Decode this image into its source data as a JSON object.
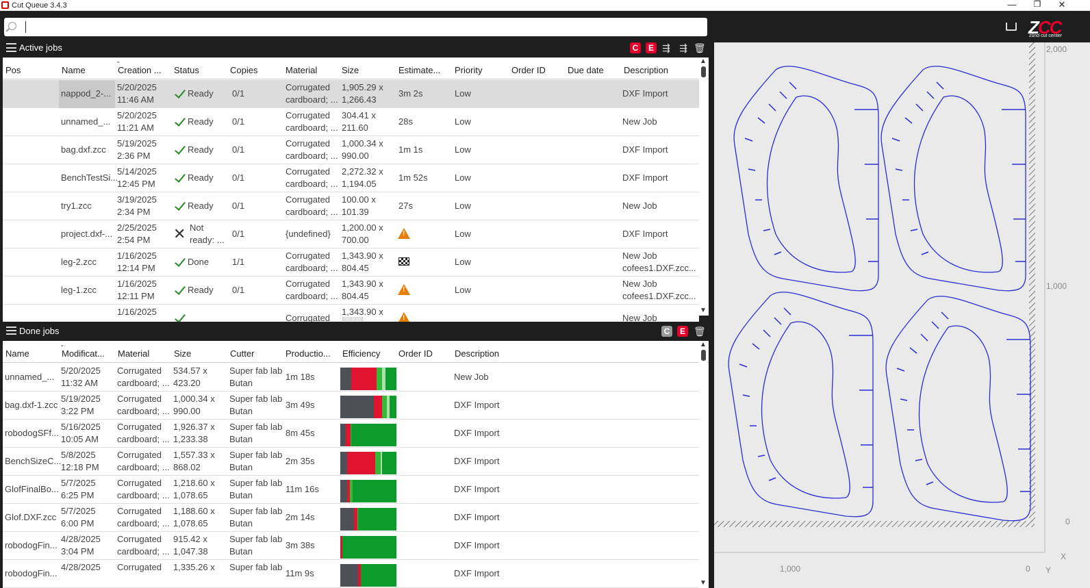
{
  "window": {
    "title": "Cut Queue 3.4.3",
    "minimize": "—",
    "restore": "❐",
    "close": "✕"
  },
  "search": {
    "value": "",
    "placeholder": ""
  },
  "active_jobs": {
    "title": "Active jobs",
    "toolbar_icons": [
      "c-icon",
      "e-icon",
      "send-icon",
      "send-all-icon",
      "trash-icon"
    ],
    "columns": [
      "Pos",
      "Name",
      "Creation ...",
      "Status",
      "Copies",
      "Material",
      "Size",
      "Estimate...",
      "Priority",
      "Order ID",
      "Due date",
      "Description"
    ],
    "rows": [
      {
        "name": "nappod_2-...",
        "date": "5/20/2025",
        "time": "11:46 AM",
        "status": "Ready",
        "status_icon": "check",
        "copies": "0/1",
        "mat1": "Corrugated",
        "mat2": "cardboard; ...",
        "size1": "1,905.29 x",
        "size2": "1,266.43",
        "estimate": "3m 2s",
        "priority": "Low",
        "desc1": "DXF Import",
        "desc2": "",
        "selected": true
      },
      {
        "name": "unnamed_...",
        "date": "5/20/2025",
        "time": "11:21 AM",
        "status": "Ready",
        "status_icon": "check",
        "copies": "0/1",
        "mat1": "Corrugated",
        "mat2": "cardboard; ...",
        "size1": "304.41 x",
        "size2": "211.60",
        "estimate": "28s",
        "priority": "Low",
        "desc1": "New Job",
        "desc2": ""
      },
      {
        "name": "bag.dxf.zcc",
        "date": "5/19/2025",
        "time": "2:36 PM",
        "status": "Ready",
        "status_icon": "check",
        "copies": "0/1",
        "mat1": "Corrugated",
        "mat2": "cardboard; ...",
        "size1": "1,000.34 x",
        "size2": "990.00",
        "estimate": "1m 1s",
        "priority": "Low",
        "desc1": "DXF Import",
        "desc2": ""
      },
      {
        "name": "BenchTestSi...",
        "date": "5/14/2025",
        "time": "12:45 PM",
        "status": "Ready",
        "status_icon": "check",
        "copies": "0/1",
        "mat1": "Corrugated",
        "mat2": "cardboard; ...",
        "size1": "2,272.32 x",
        "size2": "1,194.05",
        "estimate": "1m 52s",
        "priority": "Low",
        "desc1": "DXF Import",
        "desc2": ""
      },
      {
        "name": "try1.zcc",
        "date": "3/19/2025",
        "time": "2:34 PM",
        "status": "Ready",
        "status_icon": "check",
        "copies": "0/1",
        "mat1": "Corrugated",
        "mat2": "cardboard; ...",
        "size1": "100.00 x",
        "size2": "101.39",
        "estimate": "27s",
        "priority": "Low",
        "desc1": "New Job",
        "desc2": ""
      },
      {
        "name": "project.dxf-...",
        "date": "2/25/2025",
        "time": "2:54 PM",
        "status": "Not",
        "status2": "ready: ...",
        "status_icon": "x",
        "copies": "0/1",
        "mat1": "{undefined}",
        "mat2": "",
        "size1": "1,200.00 x",
        "size2": "700.00",
        "estimate": "",
        "estimate_icon": "warning",
        "priority": "Low",
        "desc1": "DXF Import",
        "desc2": ""
      },
      {
        "name": "leg-2.zcc",
        "date": "1/16/2025",
        "time": "12:14 PM",
        "status": "Done",
        "status_icon": "check",
        "copies": "1/1",
        "mat1": "Corrugated",
        "mat2": "cardboard; ...",
        "size1": "1,343.90 x",
        "size2": "804.45",
        "estimate": "",
        "estimate_icon": "flag",
        "priority": "Low",
        "desc1": "New Job",
        "desc2": "cofees1.DXF.zcc..."
      },
      {
        "name": "leg-1.zcc",
        "date": "1/16/2025",
        "time": "12:11 PM",
        "status": "Ready",
        "status_icon": "check",
        "copies": "0/1",
        "mat1": "Corrugated",
        "mat2": "cardboard; ...",
        "size1": "1,343.90 x",
        "size2": "804.45",
        "estimate": "",
        "estimate_icon": "warning",
        "priority": "Low",
        "desc1": "New Job",
        "desc2": "cofees1.DXF.zcc..."
      },
      {
        "name": "",
        "date": "1/16/2025",
        "time": "",
        "status": "",
        "status_icon": "check",
        "copies": "",
        "mat1": "Corrugated",
        "mat2": "",
        "size1": "1,343.90 x",
        "size2": "",
        "estimate": "",
        "estimate_icon": "warning",
        "priority": "",
        "desc1": "New Job",
        "desc2": ""
      }
    ]
  },
  "done_jobs": {
    "title": "Done jobs",
    "toolbar_icons": [
      "c-icon",
      "e-icon",
      "trash-icon"
    ],
    "columns": [
      "Name",
      "Modificat...",
      "Material",
      "Size",
      "Cutter",
      "Productio...",
      "Efficiency",
      "Order ID",
      "Description"
    ],
    "rows": [
      {
        "name": "unnamed_...",
        "date": "5/20/2025",
        "time": "11:32 AM",
        "mat1": "Corrugated",
        "mat2": "cardboard; ...",
        "size1": "534.57 x",
        "size2": "423.20",
        "cutter1": "Super fab lab",
        "cutter2": "Butan",
        "production": "1m 18s",
        "desc": "New Job",
        "eff": [
          0.2,
          0.45,
          0.1,
          0.05,
          0.2
        ]
      },
      {
        "name": "bag.dxf-1.zcc",
        "date": "5/19/2025",
        "time": "3:22 PM",
        "mat1": "Corrugated",
        "mat2": "cardboard; ...",
        "size1": "1,000.34 x",
        "size2": "990.00",
        "cutter1": "Super fab lab",
        "cutter2": "Butan",
        "production": "3m 49s",
        "desc": "DXF Import",
        "eff": [
          0.6,
          0.15,
          0.08,
          0.05,
          0.12
        ]
      },
      {
        "name": "robodogSFf...",
        "date": "5/16/2025",
        "time": "10:05 AM",
        "mat1": "Corrugated",
        "mat2": "cardboard; ...",
        "size1": "1,926.37 x",
        "size2": "1,233.38",
        "cutter1": "Super fab lab",
        "cutter2": "Butan",
        "production": "8m 45s",
        "desc": "DXF Import",
        "eff": [
          0.1,
          0.08,
          0.02,
          0.0,
          0.8
        ]
      },
      {
        "name": "BenchSizeC...",
        "date": "5/8/2025",
        "time": "12:18 PM",
        "mat1": "Corrugated",
        "mat2": "cardboard; ...",
        "size1": "1,557.33 x",
        "size2": "868.02",
        "cutter1": "Super fab lab",
        "cutter2": "Butan",
        "production": "2m 35s",
        "desc": "DXF Import",
        "eff": [
          0.12,
          0.5,
          0.1,
          0.03,
          0.25
        ]
      },
      {
        "name": "GlofFinalBo...",
        "date": "5/7/2025",
        "time": "6:25 PM",
        "mat1": "Corrugated",
        "mat2": "cardboard; ...",
        "size1": "1,218.60 x",
        "size2": "1,078.65",
        "cutter1": "Super fab lab",
        "cutter2": "Butan",
        "production": "11m 16s",
        "desc": "DXF Import",
        "eff": [
          0.12,
          0.05,
          0.05,
          0.0,
          0.78
        ]
      },
      {
        "name": "Glof.DXF.zcc",
        "date": "5/7/2025",
        "time": "6:00 PM",
        "mat1": "Corrugated",
        "mat2": "cardboard; ...",
        "size1": "1,188.60 x",
        "size2": "1,078.65",
        "cutter1": "Super fab lab",
        "cutter2": "Butan",
        "production": "2m 14s",
        "desc": "DXF Import",
        "eff": [
          0.24,
          0.06,
          0.02,
          0.0,
          0.68
        ]
      },
      {
        "name": "robodogFin...",
        "date": "4/28/2025",
        "time": "3:04 PM",
        "mat1": "Corrugated",
        "mat2": "cardboard; ...",
        "size1": "915.42 x",
        "size2": "1,047.38",
        "cutter1": "Super fab lab",
        "cutter2": "Butan",
        "production": "3m 38s",
        "desc": "DXF Import",
        "eff": [
          0.0,
          0.04,
          0.0,
          0.0,
          0.96
        ]
      },
      {
        "name": "robodogFin...",
        "date": "4/28/2025",
        "time": "",
        "mat1": "Corrugated",
        "mat2": "",
        "size1": "1,335.26 x",
        "size2": "",
        "cutter1": "Super fab lab",
        "cutter2": "",
        "production": "11m 9s",
        "desc": "DXF Import",
        "eff": [
          0.32,
          0.04,
          0.0,
          0.0,
          0.64
        ]
      }
    ]
  },
  "efficiency_colors": [
    "#4d5057",
    "#e0142f",
    "#38b838",
    "#a9e2a9",
    "#0c9b2c"
  ],
  "right_panel": {
    "logo_z": "Z",
    "logo_cc": "CC",
    "logo_sub": "zünd cut center",
    "ruler_y": [
      "2,000",
      "1,000",
      "0"
    ],
    "ruler_x": [
      "1,000",
      "0"
    ],
    "axis_x": "X",
    "axis_y": "Y"
  },
  "colors": {
    "accent": "#e4002b",
    "shape_stroke": "#2b2bd6"
  }
}
